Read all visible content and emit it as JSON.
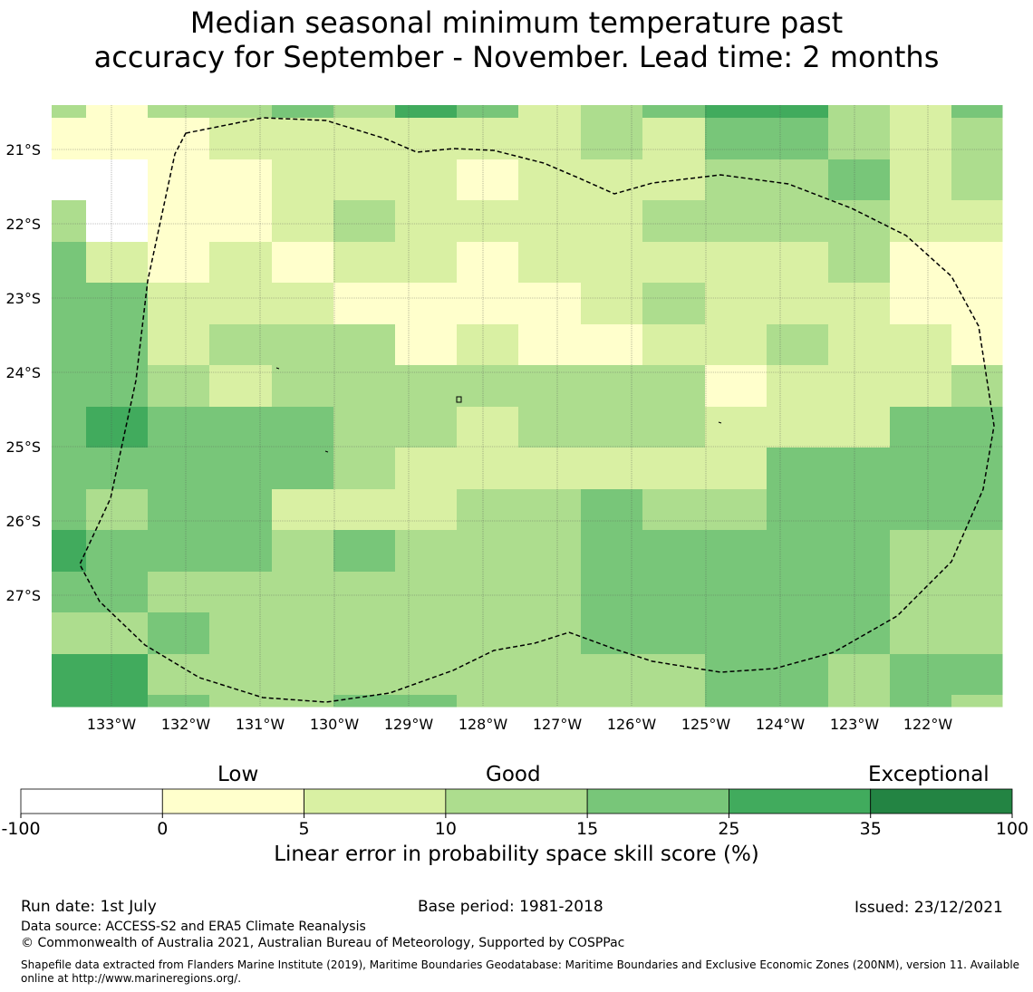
{
  "title": {
    "line1": "Median seasonal minimum temperature past",
    "line2": "accuracy for September - November. Lead time: 2 months"
  },
  "map": {
    "lat_labels": [
      "21°S",
      "22°S",
      "23°S",
      "24°S",
      "25°S",
      "26°S",
      "27°S"
    ],
    "lon_labels": [
      "133°W",
      "132°W",
      "131°W",
      "130°W",
      "129°W",
      "128°W",
      "127°W",
      "126°W",
      "125°W",
      "124°W",
      "123°W",
      "122°W"
    ],
    "grid": [
      [
        3,
        1,
        3,
        3,
        4,
        3,
        5,
        4,
        2,
        3,
        4,
        5,
        5,
        3,
        2,
        4,
        5
      ],
      [
        1,
        1,
        1,
        2,
        2,
        2,
        2,
        2,
        2,
        3,
        2,
        4,
        4,
        3,
        2,
        3,
        3
      ],
      [
        0,
        0,
        1,
        1,
        2,
        2,
        2,
        1,
        2,
        2,
        2,
        3,
        3,
        4,
        2,
        3,
        2
      ],
      [
        3,
        0,
        1,
        1,
        2,
        3,
        2,
        2,
        2,
        2,
        3,
        3,
        3,
        3,
        2,
        2,
        2
      ],
      [
        4,
        2,
        1,
        2,
        1,
        2,
        2,
        1,
        2,
        2,
        2,
        2,
        2,
        3,
        1,
        1,
        1
      ],
      [
        4,
        4,
        2,
        2,
        2,
        1,
        1,
        1,
        1,
        2,
        3,
        2,
        2,
        2,
        1,
        1,
        1
      ],
      [
        4,
        4,
        2,
        3,
        3,
        3,
        1,
        2,
        1,
        1,
        2,
        2,
        3,
        2,
        2,
        1,
        1
      ],
      [
        4,
        4,
        3,
        2,
        3,
        3,
        3,
        3,
        3,
        3,
        3,
        1,
        2,
        2,
        2,
        3,
        3
      ],
      [
        4,
        5,
        4,
        4,
        4,
        3,
        3,
        2,
        3,
        3,
        3,
        2,
        2,
        2,
        4,
        4,
        3
      ],
      [
        4,
        4,
        4,
        4,
        4,
        3,
        2,
        2,
        2,
        2,
        2,
        2,
        4,
        4,
        4,
        4,
        4
      ],
      [
        4,
        3,
        4,
        4,
        2,
        2,
        2,
        3,
        3,
        4,
        3,
        3,
        4,
        4,
        4,
        4,
        3
      ],
      [
        5,
        4,
        4,
        4,
        3,
        4,
        3,
        3,
        3,
        4,
        4,
        4,
        4,
        4,
        3,
        3,
        4
      ],
      [
        4,
        4,
        3,
        3,
        3,
        3,
        3,
        3,
        3,
        4,
        4,
        4,
        4,
        4,
        3,
        3,
        3
      ],
      [
        3,
        3,
        4,
        3,
        3,
        3,
        3,
        3,
        3,
        4,
        4,
        4,
        4,
        4,
        3,
        3,
        4
      ],
      [
        5,
        5,
        3,
        3,
        3,
        3,
        3,
        3,
        3,
        3,
        3,
        4,
        4,
        3,
        4,
        4,
        4
      ],
      [
        5,
        5,
        4,
        3,
        3,
        4,
        4,
        3,
        3,
        3,
        3,
        4,
        4,
        3,
        4,
        3,
        4
      ]
    ]
  },
  "colorbar": {
    "categories": [
      "Low",
      "Good",
      "Exceptional"
    ],
    "ticks": [
      "-100",
      "0",
      "5",
      "10",
      "15",
      "25",
      "35",
      "100"
    ],
    "colors": [
      "#ffffff",
      "#ffffcc",
      "#d9f0a3",
      "#addd8e",
      "#78c679",
      "#41ab5d",
      "#238443"
    ],
    "label": "Linear error in probability space skill score (%)"
  },
  "footer": {
    "run_date": "Run date: 1st July",
    "base_period": "Base period: 1981-2018",
    "issued": "Issued: 23/12/2021",
    "data_source": "Data source: ACCESS-S2 and ERA5 Climate Reanalysis",
    "copyright": "© Commonwealth of Australia 2021, Australian Bureau of Meteorology, Supported by COSPPac",
    "shapefile": "Shapefile data extracted from Flanders Marine Institute (2019), Maritime Boundaries Geodatabase: Maritime Boundaries and Exclusive Economic Zones (200NM), version 11. Available online at http://www.marineregions.org/."
  }
}
